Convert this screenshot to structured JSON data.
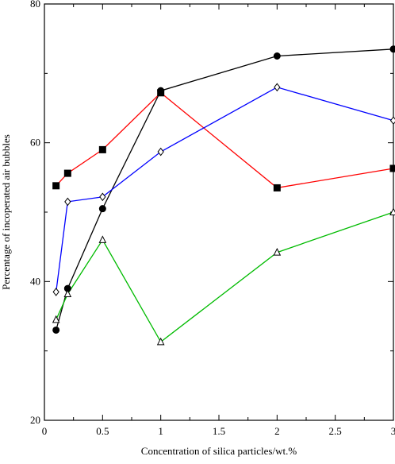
{
  "chart_data": {
    "type": "line",
    "title": "",
    "xlabel": "Concentration of silica particles/wt.%",
    "ylabel": "Percentage of incoperated air bubbles",
    "xlim": [
      0,
      3
    ],
    "ylim": [
      20,
      80
    ],
    "x_ticks": [
      0,
      0.5,
      1,
      1.5,
      2,
      2.5,
      3
    ],
    "x_tick_labels": [
      "0",
      "0.5",
      "1",
      "1.5",
      "2",
      "2.5",
      "3"
    ],
    "y_ticks": [
      20,
      40,
      60,
      80
    ],
    "y_tick_labels": [
      "20",
      "40",
      "60",
      "80"
    ],
    "grid": false,
    "legend": "none",
    "series": [
      {
        "color": "#000000",
        "marker": "filled-circle",
        "x": [
          0.1,
          0.2,
          0.5,
          1,
          2,
          3
        ],
        "y": [
          33,
          39,
          50.5,
          67.5,
          72.5,
          73.5
        ]
      },
      {
        "color": "#ff0000",
        "marker": "filled-square",
        "x": [
          0.1,
          0.2,
          0.5,
          1,
          2,
          3
        ],
        "y": [
          53.8,
          55.6,
          59,
          67.2,
          53.5,
          56.3
        ]
      },
      {
        "color": "#0000ff",
        "marker": "open-diamond",
        "x": [
          0.1,
          0.2,
          0.5,
          1,
          2,
          3
        ],
        "y": [
          38.5,
          51.5,
          52.2,
          58.7,
          68,
          63.2
        ]
      },
      {
        "color": "#00bb00",
        "marker": "open-triangle",
        "x": [
          0.1,
          0.2,
          0.5,
          1,
          2,
          3
        ],
        "y": [
          34.5,
          38.2,
          46,
          31.3,
          44.2,
          50
        ]
      }
    ]
  }
}
